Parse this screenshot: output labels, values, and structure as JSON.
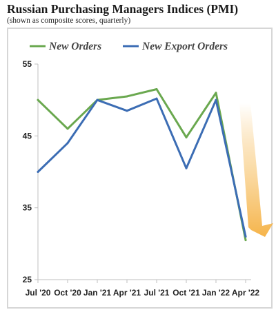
{
  "title": "Russian Purchasing Managers Indices (PMI)",
  "subtitle": "(shown as composite scores, quarterly)",
  "chart_data": {
    "type": "line",
    "title": "Russian Purchasing Managers Indices (PMI)",
    "subtitle": "(shown as composite scores, quarterly)",
    "categories": [
      "Jul '20",
      "Oct '20",
      "Jan '21",
      "Apr '21",
      "Jul '21",
      "Oct '21",
      "Jan '22",
      "Apr '22"
    ],
    "yticks": [
      "25",
      "35",
      "45",
      "55"
    ],
    "ylim": [
      25,
      55
    ],
    "grid": false,
    "legend": "top",
    "series": [
      {
        "name": "New Orders",
        "color": "#6aa84f",
        "values": [
          50.0,
          46.0,
          50.0,
          50.5,
          51.5,
          44.8,
          51.0,
          30.5
        ]
      },
      {
        "name": "New Export Orders",
        "color": "#3c6db4",
        "values": [
          40.0,
          44.0,
          50.0,
          48.5,
          50.2,
          40.5,
          50.0,
          31.0
        ]
      }
    ],
    "annotation": {
      "type": "downward-arrow",
      "color": "#f5b041"
    }
  }
}
